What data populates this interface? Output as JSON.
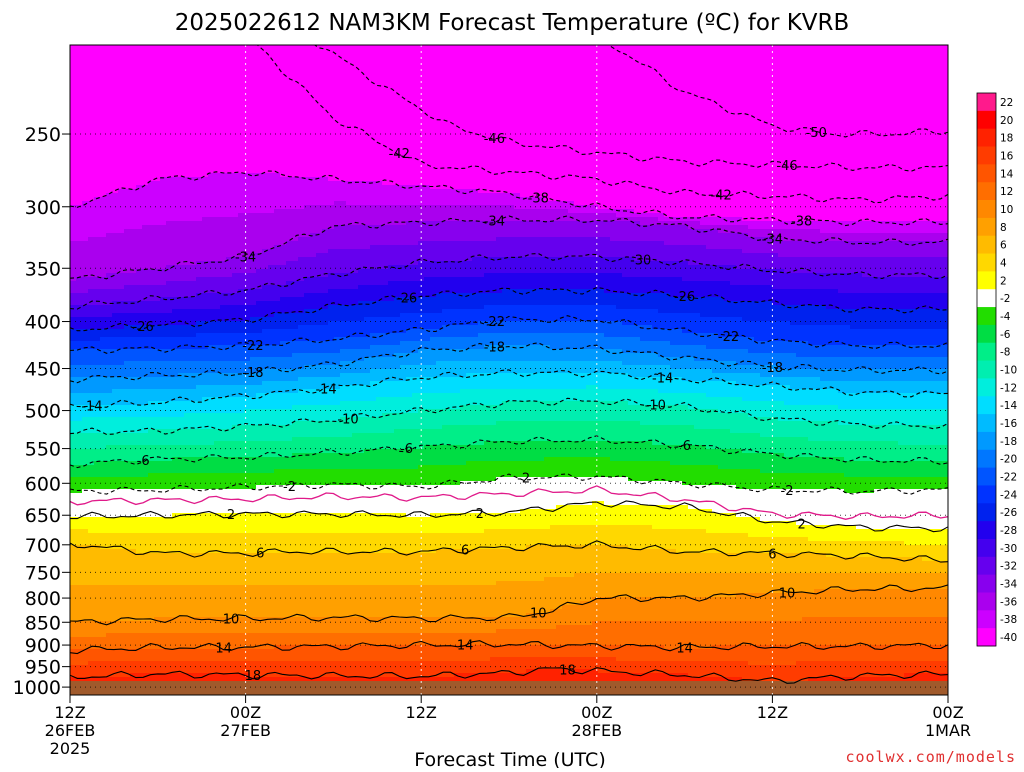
{
  "title": "2025022612 NAM3KM Forecast Temperature (ºC) for KVRB",
  "xlabel": "Forecast Time (UTC)",
  "credit": "coolwx.com/models",
  "colors": {
    "ground": "#a05a2c",
    "contour": "#000000",
    "freezing_line": "#e01a8a"
  },
  "chart_data": {
    "type": "heatmap",
    "title": "2025022612 NAM3KM Forecast Temperature (ºC) for KVRB",
    "xlabel": "Forecast Time (UTC)",
    "ylabel": "",
    "x_ticks": [
      {
        "hours": 0,
        "lines": [
          "12Z",
          "26FEB",
          "2025"
        ]
      },
      {
        "hours": 12,
        "lines": [
          "00Z",
          "27FEB"
        ]
      },
      {
        "hours": 24,
        "lines": [
          "12Z"
        ]
      },
      {
        "hours": 36,
        "lines": [
          "00Z",
          "28FEB"
        ]
      },
      {
        "hours": 48,
        "lines": [
          "12Z"
        ]
      },
      {
        "hours": 60,
        "lines": [
          "00Z",
          "1MAR"
        ]
      }
    ],
    "xlim_hours": [
      0,
      60
    ],
    "y_ticks": [
      250,
      300,
      350,
      400,
      450,
      500,
      550,
      600,
      650,
      700,
      750,
      800,
      850,
      900,
      950,
      1000
    ],
    "ylim_hpa": [
      200,
      1020
    ],
    "y_scale": "log",
    "colorbar": {
      "levels": [
        22,
        20,
        18,
        16,
        14,
        12,
        10,
        8,
        6,
        4,
        2,
        -2,
        -4,
        -6,
        -8,
        -10,
        -12,
        -14,
        -16,
        -18,
        -20,
        -22,
        -24,
        -26,
        -28,
        -30,
        -32,
        -34,
        -36,
        -38,
        -40
      ],
      "colors": [
        "#ff1a8c",
        "#ff0000",
        "#ff2200",
        "#ff3c00",
        "#ff5500",
        "#ff6e00",
        "#ff8800",
        "#ffa000",
        "#ffbb00",
        "#ffd800",
        "#ffff00",
        "#ffffff",
        "#22dd00",
        "#00dd44",
        "#00ee88",
        "#00eeb0",
        "#00eedd",
        "#00ddff",
        "#00bbff",
        "#0099ff",
        "#0077ff",
        "#0055ff",
        "#0033ff",
        "#0022ee",
        "#2200ee",
        "#4400ee",
        "#6600ee",
        "#8800ee",
        "#aa00ee",
        "#cc00ff",
        "#ff00ff"
      ]
    },
    "contour_levels": [
      {
        "temp": 18,
        "style": "solid",
        "samples": [
          [
            0,
            975
          ],
          [
            6,
            968
          ],
          [
            12,
            970
          ],
          [
            18,
            972
          ],
          [
            24,
            973
          ],
          [
            30,
            965
          ],
          [
            33,
            955
          ],
          [
            36,
            960
          ],
          [
            42,
            970
          ],
          [
            48,
            985
          ],
          [
            54,
            972
          ],
          [
            60,
            968
          ]
        ],
        "labels": [
          [
            12.5,
            "18"
          ],
          [
            34,
            "18"
          ]
        ]
      },
      {
        "temp": 14,
        "style": "solid",
        "samples": [
          [
            0,
            912
          ],
          [
            6,
            905
          ],
          [
            12,
            905
          ],
          [
            18,
            903
          ],
          [
            24,
            900
          ],
          [
            30,
            898
          ],
          [
            36,
            902
          ],
          [
            42,
            905
          ],
          [
            48,
            903
          ],
          [
            54,
            903
          ],
          [
            60,
            900
          ]
        ],
        "labels": [
          [
            10.5,
            "14"
          ],
          [
            27,
            "14"
          ],
          [
            42,
            "14"
          ]
        ]
      },
      {
        "temp": 10,
        "style": "solid",
        "samples": [
          [
            0,
            850
          ],
          [
            6,
            843
          ],
          [
            12,
            842
          ],
          [
            18,
            840
          ],
          [
            24,
            842
          ],
          [
            30,
            840
          ],
          [
            33,
            825
          ],
          [
            36,
            800
          ],
          [
            42,
            800
          ],
          [
            48,
            790
          ],
          [
            54,
            782
          ],
          [
            60,
            780
          ]
        ],
        "labels": [
          [
            11,
            "10"
          ],
          [
            32,
            "10"
          ],
          [
            49,
            "10"
          ]
        ]
      },
      {
        "temp": 6,
        "style": "solid",
        "samples": [
          [
            0,
            698
          ],
          [
            6,
            715
          ],
          [
            12,
            715
          ],
          [
            15,
            712
          ],
          [
            18,
            712
          ],
          [
            24,
            712
          ],
          [
            30,
            705
          ],
          [
            36,
            700
          ],
          [
            42,
            712
          ],
          [
            48,
            715
          ],
          [
            54,
            720
          ],
          [
            60,
            728
          ]
        ],
        "labels": [
          [
            13,
            "6"
          ],
          [
            27,
            "6"
          ],
          [
            48,
            "6"
          ]
        ]
      },
      {
        "temp": 2,
        "style": "solid",
        "samples": [
          [
            0,
            652
          ],
          [
            6,
            650
          ],
          [
            12,
            648
          ],
          [
            18,
            648
          ],
          [
            24,
            650
          ],
          [
            30,
            645
          ],
          [
            36,
            630
          ],
          [
            42,
            636
          ],
          [
            48,
            660
          ],
          [
            54,
            670
          ],
          [
            60,
            672
          ]
        ],
        "labels": [
          [
            11,
            "2"
          ],
          [
            28,
            "2"
          ],
          [
            50,
            "2"
          ]
        ]
      },
      {
        "temp": 0,
        "style": "freezing",
        "samples": [
          [
            0,
            628
          ],
          [
            6,
            626
          ],
          [
            12,
            624
          ],
          [
            18,
            620
          ],
          [
            24,
            622
          ],
          [
            30,
            616
          ],
          [
            36,
            610
          ],
          [
            42,
            625
          ],
          [
            48,
            648
          ],
          [
            54,
            652
          ],
          [
            60,
            650
          ]
        ],
        "labels": []
      },
      {
        "temp": -2,
        "style": "dashed",
        "samples": [
          [
            0,
            612
          ],
          [
            6,
            610
          ],
          [
            12,
            606
          ],
          [
            18,
            602
          ],
          [
            24,
            605
          ],
          [
            30,
            592
          ],
          [
            36,
            590
          ],
          [
            42,
            600
          ],
          [
            48,
            610
          ],
          [
            54,
            612
          ],
          [
            60,
            610
          ]
        ],
        "labels": [
          [
            15,
            "-2"
          ],
          [
            31,
            "-2"
          ],
          [
            49,
            "-2"
          ]
        ]
      },
      {
        "temp": -6,
        "style": "dashed",
        "samples": [
          [
            0,
            572
          ],
          [
            6,
            565
          ],
          [
            12,
            562
          ],
          [
            18,
            556
          ],
          [
            24,
            548
          ],
          [
            30,
            540
          ],
          [
            36,
            538
          ],
          [
            42,
            545
          ],
          [
            48,
            558
          ],
          [
            54,
            566
          ],
          [
            60,
            568
          ]
        ],
        "labels": [
          [
            5,
            "-6"
          ],
          [
            23,
            "-6"
          ],
          [
            42,
            "-6"
          ]
        ]
      },
      {
        "temp": -10,
        "style": "dashed",
        "samples": [
          [
            0,
            528
          ],
          [
            6,
            526
          ],
          [
            12,
            520
          ],
          [
            18,
            512
          ],
          [
            24,
            500
          ],
          [
            30,
            490
          ],
          [
            36,
            488
          ],
          [
            42,
            495
          ],
          [
            48,
            510
          ],
          [
            54,
            518
          ],
          [
            60,
            520
          ]
        ],
        "labels": [
          [
            19,
            "-10"
          ],
          [
            40,
            "-10"
          ]
        ]
      },
      {
        "temp": -14,
        "style": "dashed",
        "samples": [
          [
            0,
            495
          ],
          [
            6,
            490
          ],
          [
            12,
            482
          ],
          [
            18,
            472
          ],
          [
            24,
            460
          ],
          [
            30,
            455
          ],
          [
            36,
            455
          ],
          [
            42,
            462
          ],
          [
            48,
            470
          ],
          [
            54,
            478
          ],
          [
            60,
            480
          ]
        ],
        "labels": [
          [
            1.5,
            "-14"
          ],
          [
            17.5,
            "-14"
          ],
          [
            40.5,
            "-14"
          ]
        ]
      },
      {
        "temp": -18,
        "style": "dashed",
        "samples": [
          [
            0,
            462
          ],
          [
            6,
            458
          ],
          [
            12,
            455
          ],
          [
            18,
            445
          ],
          [
            24,
            430
          ],
          [
            30,
            425
          ],
          [
            36,
            428
          ],
          [
            42,
            438
          ],
          [
            48,
            448
          ],
          [
            54,
            452
          ],
          [
            60,
            452
          ]
        ],
        "labels": [
          [
            12.5,
            "-18"
          ],
          [
            29,
            "-18"
          ],
          [
            48,
            "-18"
          ]
        ]
      },
      {
        "temp": -22,
        "style": "dashed",
        "samples": [
          [
            0,
            430
          ],
          [
            6,
            428
          ],
          [
            12,
            425
          ],
          [
            18,
            418
          ],
          [
            24,
            408
          ],
          [
            30,
            398
          ],
          [
            36,
            398
          ],
          [
            42,
            410
          ],
          [
            48,
            420
          ],
          [
            54,
            425
          ],
          [
            60,
            425
          ]
        ],
        "labels": [
          [
            12.5,
            "-22"
          ],
          [
            29,
            "-22"
          ],
          [
            45,
            "-22"
          ]
        ]
      },
      {
        "temp": -26,
        "style": "dashed",
        "samples": [
          [
            0,
            408
          ],
          [
            6,
            404
          ],
          [
            12,
            398
          ],
          [
            18,
            385
          ],
          [
            24,
            375
          ],
          [
            30,
            370
          ],
          [
            36,
            370
          ],
          [
            42,
            375
          ],
          [
            48,
            382
          ],
          [
            54,
            388
          ],
          [
            60,
            388
          ]
        ],
        "labels": [
          [
            5,
            "-26"
          ],
          [
            23,
            "-26"
          ],
          [
            42,
            "-26"
          ]
        ]
      },
      {
        "temp": -30,
        "style": "dashed",
        "samples": [
          [
            0,
            385
          ],
          [
            6,
            378
          ],
          [
            12,
            370
          ],
          [
            18,
            355
          ],
          [
            24,
            345
          ],
          [
            30,
            340
          ],
          [
            36,
            340
          ],
          [
            42,
            345
          ],
          [
            48,
            352
          ],
          [
            54,
            356
          ],
          [
            60,
            356
          ]
        ],
        "labels": [
          [
            39,
            "-30"
          ]
        ]
      },
      {
        "temp": -34,
        "style": "dashed",
        "samples": [
          [
            0,
            360
          ],
          [
            6,
            350
          ],
          [
            12,
            340
          ],
          [
            18,
            315
          ],
          [
            24,
            312
          ],
          [
            30,
            310
          ],
          [
            36,
            310
          ],
          [
            42,
            315
          ],
          [
            48,
            325
          ],
          [
            54,
            328
          ],
          [
            60,
            328
          ]
        ],
        "labels": [
          [
            12,
            "-34"
          ],
          [
            29,
            "-34"
          ],
          [
            48,
            "-34"
          ]
        ]
      },
      {
        "temp": -38,
        "style": "dashed",
        "samples": [
          [
            0,
            300
          ],
          [
            3,
            290
          ],
          [
            6,
            280
          ],
          [
            12,
            275
          ],
          [
            18,
            280
          ],
          [
            24,
            285
          ],
          [
            30,
            290
          ],
          [
            36,
            300
          ],
          [
            42,
            308
          ],
          [
            48,
            310
          ],
          [
            54,
            312
          ],
          [
            60,
            312
          ]
        ],
        "labels": [
          [
            32,
            "-38"
          ],
          [
            50,
            "-38"
          ]
        ]
      },
      {
        "temp": -42,
        "style": "dashed",
        "samples": [
          [
            12,
            195
          ],
          [
            18,
            240
          ],
          [
            24,
            270
          ],
          [
            30,
            275
          ],
          [
            36,
            280
          ],
          [
            42,
            290
          ],
          [
            48,
            292
          ],
          [
            54,
            295
          ],
          [
            60,
            292
          ]
        ],
        "labels": [
          [
            22.5,
            "-42"
          ],
          [
            44.5,
            "-42"
          ]
        ]
      },
      {
        "temp": -46,
        "style": "dashed",
        "samples": [
          [
            16,
            195
          ],
          [
            22,
            225
          ],
          [
            26,
            245
          ],
          [
            30,
            255
          ],
          [
            36,
            262
          ],
          [
            42,
            268
          ],
          [
            48,
            270
          ],
          [
            54,
            272
          ],
          [
            60,
            272
          ]
        ],
        "labels": [
          [
            29,
            "-46"
          ],
          [
            49,
            "-46"
          ]
        ]
      },
      {
        "temp": -50,
        "style": "dashed",
        "samples": [
          [
            36,
            195
          ],
          [
            42,
            225
          ],
          [
            48,
            245
          ],
          [
            52,
            250
          ],
          [
            56,
            250
          ],
          [
            60,
            248
          ]
        ],
        "labels": [
          [
            51,
            "-50"
          ]
        ]
      }
    ]
  }
}
